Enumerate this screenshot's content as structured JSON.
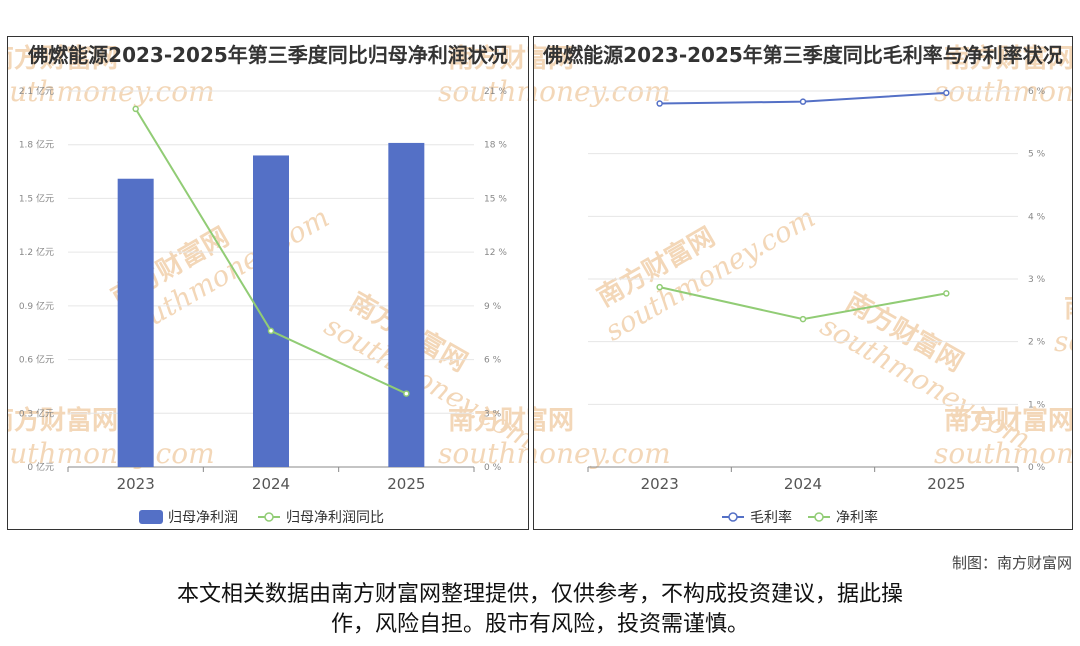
{
  "left": {
    "title": "佛燃能源2023-2025年第三季度同比归母净利润状况",
    "legend": [
      "归母净利润",
      "归母净利润同比"
    ]
  },
  "right": {
    "title": "佛燃能源2023-2025年第三季度同比毛利率与净利率状况",
    "legend": [
      "毛利率",
      "净利率"
    ]
  },
  "watermark": {
    "cn": "南方财富网",
    "en": "southmoney.com"
  },
  "credit": "制图：南方财富网",
  "disclaimer_line1": "本文相关数据由南方财富网整理提供，仅供参考，不构成投资建议，据此操",
  "disclaimer_line2": "作，风险自担。股市有风险，投资需谨慎。",
  "colors": {
    "bar": "#5470c6",
    "line_green": "#91cc75",
    "line_blue": "#5470c6"
  },
  "chart_data": [
    {
      "type": "bar",
      "categories": [
        "2023",
        "2024",
        "2025"
      ],
      "series": [
        {
          "name": "归母净利润",
          "type": "bar",
          "axis": "left",
          "values": [
            1.61,
            1.74,
            1.81
          ]
        },
        {
          "name": "归母净利润同比",
          "type": "line",
          "axis": "right",
          "values": [
            20.0,
            7.6,
            4.1
          ]
        }
      ],
      "left_axis": {
        "ticks": [
          "0 亿元",
          "0.3 亿元",
          "0.6 亿元",
          "0.9 亿元",
          "1.2 亿元",
          "1.5 亿元",
          "1.8 亿元",
          "2.1 亿元"
        ],
        "ylim": [
          0,
          2.1
        ]
      },
      "right_axis": {
        "ticks": [
          "0 %",
          "3 %",
          "6 %",
          "9 %",
          "12 %",
          "15 %",
          "18 %",
          "21 %"
        ],
        "ylim": [
          0,
          21
        ]
      },
      "legend_position": "bottom"
    },
    {
      "type": "line",
      "categories": [
        "2023",
        "2024",
        "2025"
      ],
      "series": [
        {
          "name": "毛利率",
          "values": [
            5.8,
            5.83,
            5.97
          ]
        },
        {
          "name": "净利率",
          "values": [
            2.87,
            2.36,
            2.77
          ]
        }
      ],
      "right_axis": {
        "ticks": [
          "0 %",
          "1 %",
          "2 %",
          "3 %",
          "4 %",
          "5 %",
          "6 %"
        ],
        "ylim": [
          0,
          6
        ]
      },
      "legend_position": "bottom"
    }
  ]
}
